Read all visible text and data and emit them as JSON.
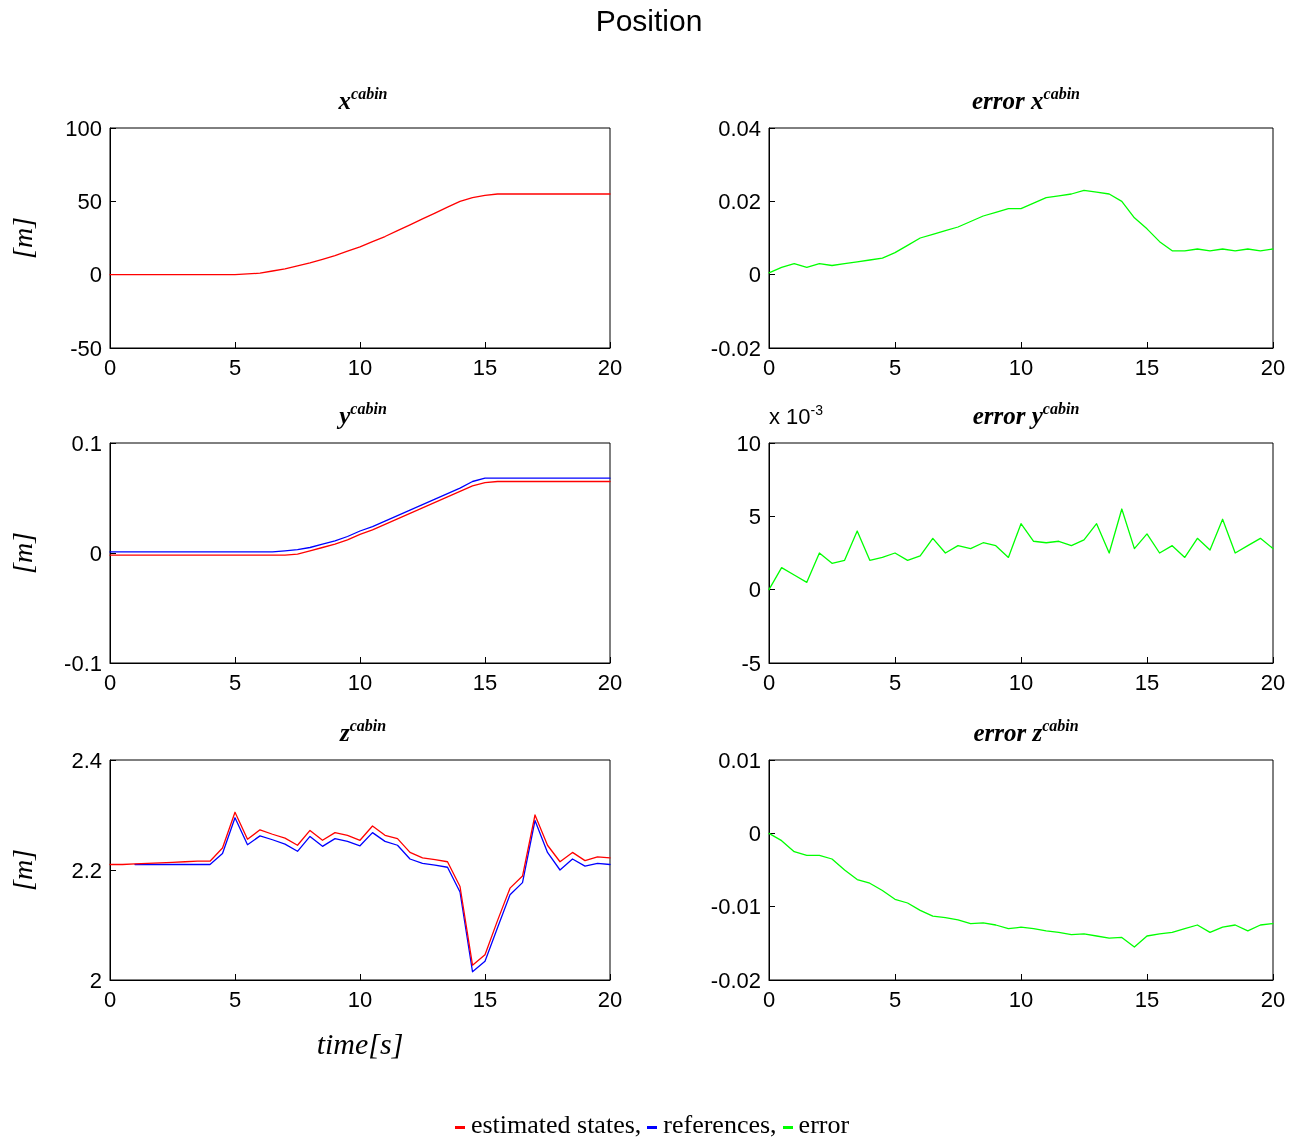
{
  "chart_data": [
    {
      "type": "line",
      "title": "x$^{cabin}$",
      "ylabel": "[m]",
      "xlim": [
        0,
        20
      ],
      "xticks": [
        0,
        5,
        10,
        15,
        20
      ],
      "ylim": [
        -50,
        100
      ],
      "yticks": [
        -50,
        0,
        50,
        100
      ],
      "x": [
        0,
        0.5,
        1,
        1.5,
        2,
        2.5,
        3,
        3.5,
        4,
        4.5,
        5,
        5.5,
        6,
        6.5,
        7,
        7.5,
        8,
        8.5,
        9,
        9.5,
        10,
        10.5,
        11,
        11.5,
        12,
        12.5,
        13,
        13.5,
        14,
        14.5,
        15,
        15.5,
        16,
        16.5,
        17,
        17.5,
        18,
        18.5,
        19,
        19.5,
        20
      ],
      "series": [
        {
          "color": "#ff0000",
          "values": [
            0,
            0,
            0,
            0,
            0,
            0,
            0,
            0,
            0,
            0,
            0,
            0.5,
            1,
            2.5,
            4,
            6,
            8,
            10.5,
            13,
            16,
            19,
            22.5,
            26,
            30,
            34,
            38,
            42,
            46,
            50,
            52.5,
            54,
            55,
            55,
            55,
            55,
            55,
            55,
            55,
            55,
            55,
            55
          ]
        }
      ]
    },
    {
      "type": "line",
      "title": "error x$^{cabin}$",
      "xlim": [
        0,
        20
      ],
      "xticks": [
        0,
        5,
        10,
        15,
        20
      ],
      "ylim": [
        -0.02,
        0.04
      ],
      "yticks": [
        -0.02,
        0,
        0.02,
        0.04
      ],
      "x": [
        0,
        0.5,
        1,
        1.5,
        2,
        2.5,
        3,
        3.5,
        4,
        4.5,
        5,
        5.5,
        6,
        6.5,
        7,
        7.5,
        8,
        8.5,
        9,
        9.5,
        10,
        10.5,
        11,
        11.5,
        12,
        12.5,
        13,
        13.5,
        14,
        14.5,
        15,
        15.5,
        16,
        16.5,
        17,
        17.5,
        18,
        18.5,
        19,
        19.5,
        20
      ],
      "series": [
        {
          "color": "#00ff00",
          "values": [
            0.0005,
            0.002,
            0.003,
            0.002,
            0.003,
            0.0025,
            0.003,
            0.0035,
            0.004,
            0.0045,
            0.006,
            0.008,
            0.01,
            0.011,
            0.012,
            0.013,
            0.0145,
            0.016,
            0.017,
            0.018,
            0.018,
            0.0195,
            0.021,
            0.0215,
            0.022,
            0.023,
            0.0225,
            0.022,
            0.02,
            0.0155,
            0.0125,
            0.009,
            0.0065,
            0.0065,
            0.007,
            0.0065,
            0.007,
            0.0065,
            0.007,
            0.0065,
            0.007
          ]
        }
      ]
    },
    {
      "type": "line",
      "title": "y$^{cabin}$",
      "ylabel": "[m]",
      "xlim": [
        0,
        20
      ],
      "xticks": [
        0,
        5,
        10,
        15,
        20
      ],
      "ylim": [
        -0.1,
        0.1
      ],
      "yticks": [
        -0.1,
        0,
        0.1
      ],
      "x": [
        0,
        0.5,
        1,
        1.5,
        2,
        2.5,
        3,
        3.5,
        4,
        4.5,
        5,
        5.5,
        6,
        6.5,
        7,
        7.5,
        8,
        8.5,
        9,
        9.5,
        10,
        10.5,
        11,
        11.5,
        12,
        12.5,
        13,
        13.5,
        14,
        14.5,
        15,
        15.5,
        16,
        16.5,
        17,
        17.5,
        18,
        18.5,
        19,
        19.5,
        20
      ],
      "series": [
        {
          "color": "#ff0000",
          "values": [
            -0.002,
            -0.002,
            -0.002,
            -0.002,
            -0.002,
            -0.002,
            -0.002,
            -0.002,
            -0.002,
            -0.002,
            -0.002,
            -0.002,
            -0.002,
            -0.002,
            -0.002,
            -0.001,
            0.002,
            0.005,
            0.008,
            0.012,
            0.017,
            0.021,
            0.026,
            0.031,
            0.036,
            0.041,
            0.046,
            0.051,
            0.056,
            0.061,
            0.064,
            0.065,
            0.065,
            0.065,
            0.065,
            0.065,
            0.065,
            0.065,
            0.065,
            0.065,
            0.065
          ]
        },
        {
          "color": "#0000ff",
          "values": [
            0.001,
            0.001,
            0.001,
            0.001,
            0.001,
            0.001,
            0.001,
            0.001,
            0.001,
            0.001,
            0.001,
            0.001,
            0.001,
            0.001,
            0.002,
            0.003,
            0.005,
            0.008,
            0.011,
            0.015,
            0.02,
            0.024,
            0.029,
            0.034,
            0.039,
            0.044,
            0.049,
            0.054,
            0.059,
            0.065,
            0.068,
            0.068,
            0.068,
            0.068,
            0.068,
            0.068,
            0.068,
            0.068,
            0.068,
            0.068,
            0.068
          ]
        }
      ]
    },
    {
      "type": "line",
      "title": "error y$^{cabin}$",
      "annotations": [
        "x 10$^{-3}$"
      ],
      "xlim": [
        0,
        20
      ],
      "xticks": [
        0,
        5,
        10,
        15,
        20
      ],
      "ylim": [
        -5,
        10
      ],
      "yticks": [
        -5,
        0,
        5,
        10
      ],
      "x": [
        0,
        0.5,
        1,
        1.5,
        2,
        2.5,
        3,
        3.5,
        4,
        4.5,
        5,
        5.5,
        6,
        6.5,
        7,
        7.5,
        8,
        8.5,
        9,
        9.5,
        10,
        10.5,
        11,
        11.5,
        12,
        12.5,
        13,
        13.5,
        14,
        14.5,
        15,
        15.5,
        16,
        16.5,
        17,
        17.5,
        18,
        18.5,
        19,
        19.5,
        20
      ],
      "series": [
        {
          "color": "#00ff00",
          "values": [
            0,
            1.5,
            1,
            0.5,
            2.5,
            1.8,
            2,
            4,
            2,
            2.2,
            2.5,
            2,
            2.3,
            3.5,
            2.5,
            3,
            2.8,
            3.2,
            3,
            2.2,
            4.5,
            3.3,
            3.2,
            3.3,
            3,
            3.4,
            4.5,
            2.5,
            5.5,
            2.8,
            3.8,
            2.5,
            3,
            2.2,
            3.5,
            2.7,
            4.8,
            2.5,
            3,
            3.5,
            2.8
          ]
        }
      ]
    },
    {
      "type": "line",
      "title": "z$^{cabin}$",
      "ylabel": "[m]",
      "xlabel": "time[s]",
      "xlim": [
        0,
        20
      ],
      "xticks": [
        0,
        5,
        10,
        15,
        20
      ],
      "ylim": [
        2,
        2.4
      ],
      "yticks": [
        2,
        2.2,
        2.4
      ],
      "x": [
        0,
        0.5,
        1,
        1.5,
        2,
        2.5,
        3,
        3.5,
        4,
        4.5,
        5,
        5.5,
        6,
        6.5,
        7,
        7.5,
        8,
        8.5,
        9,
        9.5,
        10,
        10.5,
        11,
        11.5,
        12,
        12.5,
        13,
        13.5,
        14,
        14.5,
        15,
        15.5,
        16,
        16.5,
        17,
        17.5,
        18,
        18.5,
        19,
        19.5,
        20
      ],
      "series": [
        {
          "color": "#0000ff",
          "values": [
            null,
            null,
            2.21,
            2.21,
            2.21,
            2.21,
            2.21,
            2.21,
            2.21,
            2.23,
            2.295,
            2.246,
            2.262,
            2.255,
            2.247,
            2.234,
            2.261,
            2.243,
            2.257,
            2.252,
            2.244,
            2.268,
            2.252,
            2.245,
            2.22,
            2.212,
            2.209,
            2.205,
            2.16,
            2.015,
            2.034,
            2.095,
            2.155,
            2.177,
            2.29,
            2.232,
            2.2,
            2.22,
            2.207,
            2.212,
            2.21
          ]
        },
        {
          "color": "#ff0000",
          "values": [
            2.21,
            2.21,
            2.211,
            2.212,
            2.213,
            2.214,
            2.215,
            2.216,
            2.216,
            2.24,
            2.305,
            2.256,
            2.273,
            2.265,
            2.258,
            2.245,
            2.272,
            2.254,
            2.268,
            2.263,
            2.254,
            2.28,
            2.263,
            2.257,
            2.232,
            2.222,
            2.219,
            2.215,
            2.17,
            2.027,
            2.046,
            2.108,
            2.167,
            2.189,
            2.3,
            2.245,
            2.215,
            2.232,
            2.217,
            2.224,
            2.222
          ]
        }
      ]
    },
    {
      "type": "line",
      "title": "error z$^{cabin}$",
      "xlim": [
        0,
        20
      ],
      "xticks": [
        0,
        5,
        10,
        15,
        20
      ],
      "ylim": [
        -0.02,
        0.01
      ],
      "yticks": [
        -0.02,
        -0.01,
        0,
        0.01
      ],
      "x": [
        0,
        0.5,
        1,
        1.5,
        2,
        2.5,
        3,
        3.5,
        4,
        4.5,
        5,
        5.5,
        6,
        6.5,
        7,
        7.5,
        8,
        8.5,
        9,
        9.5,
        10,
        10.5,
        11,
        11.5,
        12,
        12.5,
        13,
        13.5,
        14,
        14.5,
        15,
        15.5,
        16,
        16.5,
        17,
        17.5,
        18,
        18.5,
        19,
        19.5,
        20
      ],
      "series": [
        {
          "color": "#00ff00",
          "values": [
            0,
            -0.001,
            -0.0025,
            -0.003,
            -0.003,
            -0.0035,
            -0.005,
            -0.0063,
            -0.0068,
            -0.0078,
            -0.009,
            -0.0095,
            -0.0105,
            -0.0113,
            -0.0115,
            -0.0118,
            -0.0123,
            -0.0122,
            -0.0125,
            -0.013,
            -0.0128,
            -0.013,
            -0.0133,
            -0.0135,
            -0.0138,
            -0.0137,
            -0.014,
            -0.0143,
            -0.0142,
            -0.0155,
            -0.014,
            -0.0137,
            -0.0135,
            -0.013,
            -0.0125,
            -0.0135,
            -0.0128,
            -0.0125,
            -0.0133,
            -0.0125,
            -0.0123
          ]
        }
      ]
    },
    {
      "type": "other",
      "title": "Position",
      "annotations": [
        "estimated states,",
        "references,",
        "error"
      ],
      "colors": [
        "#ff0000",
        "#0000ff",
        "#00ff00"
      ]
    }
  ]
}
